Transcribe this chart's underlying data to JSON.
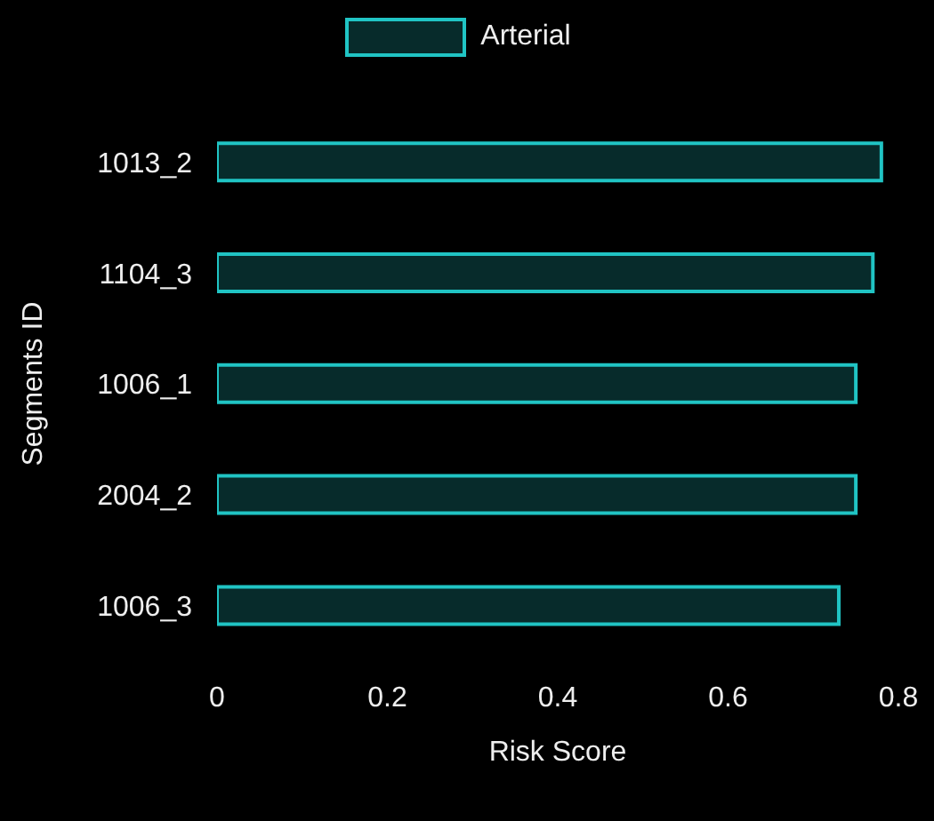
{
  "chart_data": {
    "type": "bar",
    "orientation": "horizontal",
    "xlabel": "Risk Score",
    "ylabel": "Segments ID",
    "categories": [
      "1013_2",
      "1104_3",
      "1006_1",
      "2004_2",
      "1006_3"
    ],
    "series": [
      {
        "name": "Arterial",
        "color": "#20c4c4",
        "values": [
          0.78,
          0.77,
          0.75,
          0.75,
          0.73
        ]
      }
    ],
    "xlim": [
      0,
      0.8
    ],
    "xticks": [
      0,
      0.2,
      0.4,
      0.6,
      0.8
    ],
    "grid": false,
    "legend": "top"
  }
}
